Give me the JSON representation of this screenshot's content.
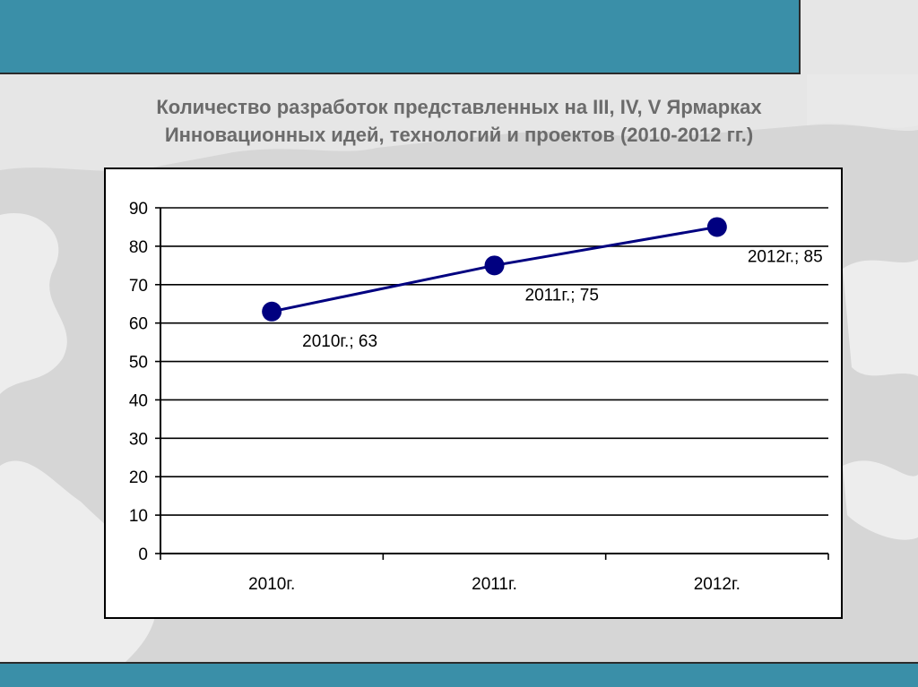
{
  "slide": {
    "title_line1": "Количество разработок представленных на III, IV, V  Ярмарках",
    "title_line2": "Инновационных идей, технологий и проектов (2010-2012 гг.)",
    "accent_color": "#3a8fa8"
  },
  "chart_data": {
    "type": "line",
    "categories": [
      "2010г.",
      "2011г.",
      "2012г."
    ],
    "series": [
      {
        "values": [
          63,
          75,
          85
        ],
        "color": "#000080"
      }
    ],
    "data_labels": [
      "2010г.; 63",
      "2011г.; 75",
      "2012г.; 85"
    ],
    "ylim": [
      0,
      90
    ],
    "yticks": [
      0,
      10,
      20,
      30,
      40,
      50,
      60,
      70,
      80,
      90
    ],
    "grid": true,
    "legend": "none"
  }
}
